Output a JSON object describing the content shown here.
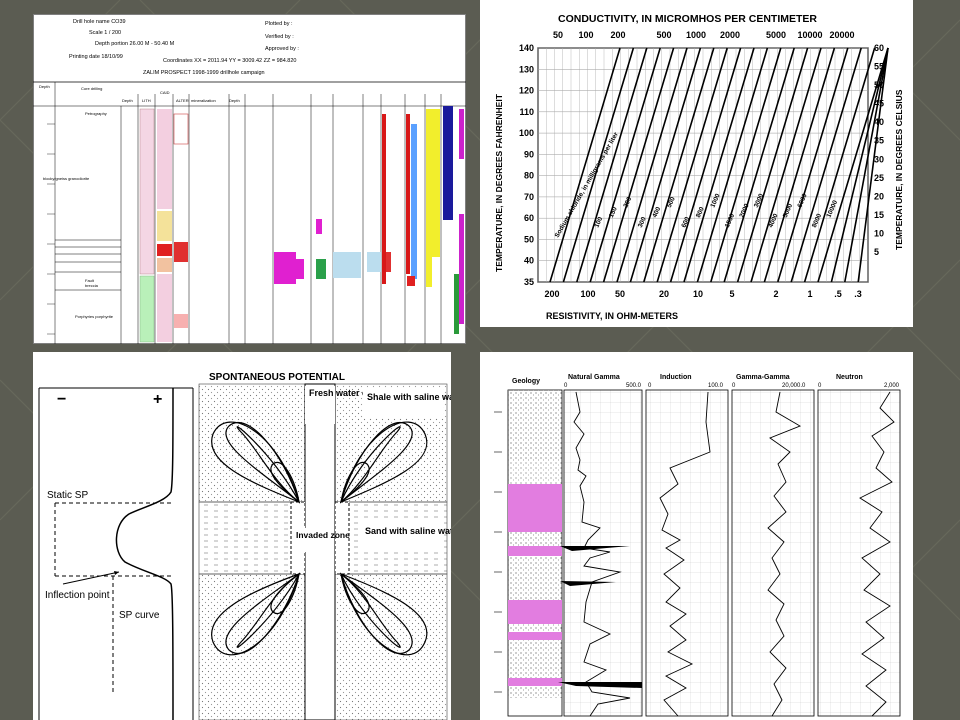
{
  "palette": {
    "background": "#5b5c52",
    "pink": "#e879e0",
    "yellow": "#f2ee2c",
    "red": "#d81818",
    "blue": "#1a1a9c",
    "green": "#2a9a3a",
    "magenta": "#cc22cc"
  },
  "drill_log": {
    "header": {
      "drill_hole": "Drill hole name CO39",
      "scale": "Scale 1 / 200",
      "depth_portion": "Depth portion 26.00 M - 50.40 M",
      "printing_date": "Printing date 18/10/99",
      "plotted_by": "Plotted by :",
      "verified_by": "Verified by :",
      "approved_by": "Approved by :",
      "coordinates": "Coordinates XX = 2011.94 YY = 3009.42 ZZ = 984.820",
      "prospect": "ZALIM PROSPECT   1998-1999 drillhole campaign"
    },
    "columns": {
      "depth": "Depth",
      "core_drilling": "Core drilling",
      "petrography": "Petrography",
      "depth2": "Depth",
      "lith": "LITH",
      "caid": "CAID",
      "alter": "ALTER",
      "mineralization": "mineralization",
      "depth3": "Depth"
    },
    "rock_labels": {
      "upper": "blocky/gneiss granodiorite",
      "fault": "Fault",
      "fault_breccia": "breccia",
      "lower": "Porphyries porphyrite"
    }
  },
  "chart": {
    "title": "CONDUCTIVITY, IN MICROMHOS PER CENTIMETER",
    "top_ticks": [
      "50",
      "100",
      "200",
      "500",
      "1000",
      "2000",
      "5000",
      "10000",
      "20000"
    ],
    "left_ticks": [
      "140",
      "130",
      "120",
      "110",
      "100",
      "90",
      "80",
      "70",
      "60",
      "50",
      "40",
      "35"
    ],
    "right_ticks": [
      "60",
      "55",
      "50",
      "45",
      "40",
      "35",
      "30",
      "25",
      "20",
      "15",
      "10",
      "5"
    ],
    "bottom_ticks": [
      "200",
      "100",
      "50",
      "20",
      "10",
      "5",
      "2",
      "1",
      ".5",
      ".3"
    ],
    "left_label": "TEMPERATURE, IN DEGREES FAHRENHEIT",
    "right_label": "TEMPERATURE, IN DEGREES CELSIUS",
    "bottom_label": "RESISTIVITY, IN OHM-METERS",
    "curve_label": "Sodium chloride, in milligrams per liter",
    "line_labels": [
      "100",
      "150",
      "200",
      "300",
      "400",
      "500",
      "600",
      "800",
      "1000",
      "1500",
      "2000",
      "3000",
      "4000",
      "5000",
      "6000",
      "8000",
      "10000"
    ]
  },
  "sp": {
    "title": "SPONTANEOUS POTENTIAL",
    "minus": "−",
    "plus": "+",
    "static_sp": "Static SP",
    "inflection": "Inflection point",
    "sp_curve": "SP curve",
    "fresh_water": "Fresh water or mud",
    "shale": "Shale with saline water",
    "sand": "Sand with saline water",
    "invaded": "Invaded zone"
  },
  "well_log": {
    "geology": "Geology",
    "tracks": [
      {
        "name": "Natural Gamma",
        "min": "0",
        "max": "500.0"
      },
      {
        "name": "Induction",
        "min": "0",
        "max": "100.0"
      },
      {
        "name": "Gamma-Gamma",
        "min": "0",
        "max": "20,000.0"
      },
      {
        "name": "Neutron",
        "min": "0",
        "max": "2,000"
      }
    ]
  }
}
